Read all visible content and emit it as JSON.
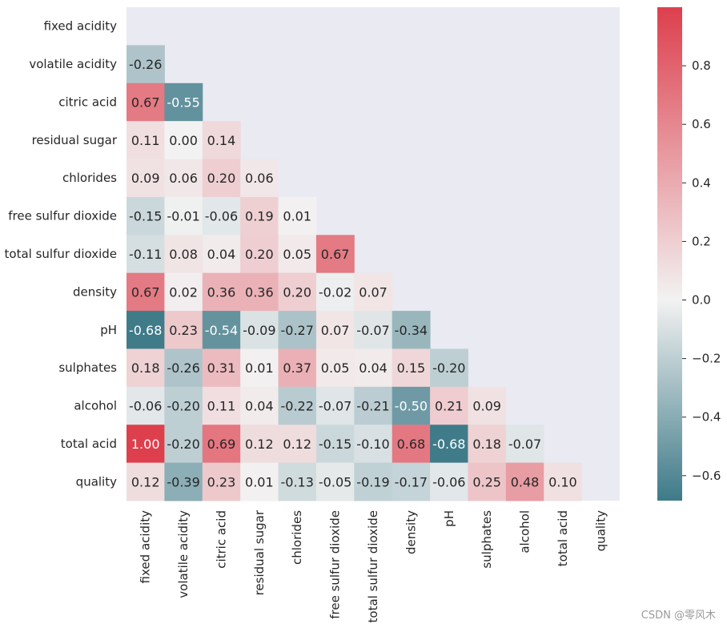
{
  "chart_data": {
    "type": "heatmap",
    "title": "",
    "variables": [
      "fixed acidity",
      "volatile acidity",
      "citric acid",
      "residual sugar",
      "chlorides",
      "free sulfur dioxide",
      "total sulfur dioxide",
      "density",
      "pH",
      "sulphates",
      "alcohol",
      "total acid",
      "quality"
    ],
    "mask": "upper-triangle-including-diagonal",
    "values": [
      [],
      [
        -0.26
      ],
      [
        0.67,
        -0.55
      ],
      [
        0.11,
        0.0,
        0.14
      ],
      [
        0.09,
        0.06,
        0.2,
        0.06
      ],
      [
        -0.15,
        -0.01,
        -0.06,
        0.19,
        0.01
      ],
      [
        -0.11,
        0.08,
        0.04,
        0.2,
        0.05,
        0.67
      ],
      [
        0.67,
        0.02,
        0.36,
        0.36,
        0.2,
        -0.02,
        0.07
      ],
      [
        -0.68,
        0.23,
        -0.54,
        -0.09,
        -0.27,
        0.07,
        -0.07,
        -0.34
      ],
      [
        0.18,
        -0.26,
        0.31,
        0.01,
        0.37,
        0.05,
        0.04,
        0.15,
        -0.2
      ],
      [
        -0.06,
        -0.2,
        0.11,
        0.04,
        -0.22,
        -0.07,
        -0.21,
        -0.5,
        0.21,
        0.09
      ],
      [
        1.0,
        -0.2,
        0.69,
        0.12,
        0.12,
        -0.15,
        -0.1,
        0.68,
        -0.68,
        0.18,
        -0.07
      ],
      [
        0.12,
        -0.39,
        0.23,
        0.01,
        -0.13,
        -0.05,
        -0.19,
        -0.17,
        -0.06,
        0.25,
        0.48,
        0.1
      ]
    ],
    "value_format": "0.00",
    "colorbar": {
      "vmin": -0.6853,
      "vmax": 1.0,
      "ticks": [
        -0.6,
        -0.4,
        -0.2,
        0.0,
        0.2,
        0.4,
        0.6,
        0.8
      ],
      "tick_labels": [
        "−0.6",
        "−0.4",
        "−0.2",
        "0.0",
        "0.2",
        "0.4",
        "0.6",
        "0.8"
      ],
      "colormap": "diverging 220-10 (teal to red)",
      "low_color": "#3e7a88",
      "mid_color": "#f2f2f2",
      "high_color": "#dd3f4d"
    },
    "background_color": "#eaeaf2"
  },
  "watermark": "CSDN @零风木"
}
